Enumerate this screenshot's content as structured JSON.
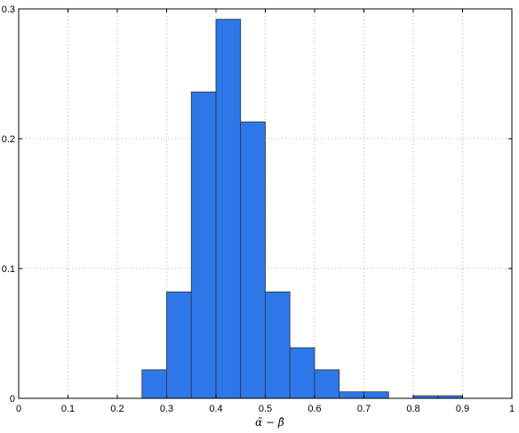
{
  "chart_data": {
    "type": "bar",
    "subtype": "histogram",
    "title": "",
    "xlabel": "α̃ − β̂",
    "ylabel": "",
    "xlim": [
      0,
      1
    ],
    "ylim": [
      0,
      0.3
    ],
    "grid": true,
    "grid_style": "dotted",
    "bar_color": "#2E77E8",
    "bar_edge_color": "#333333",
    "bins": [
      {
        "x0": 0.25,
        "x1": 0.3,
        "value": 0.022
      },
      {
        "x0": 0.3,
        "x1": 0.35,
        "value": 0.082
      },
      {
        "x0": 0.35,
        "x1": 0.4,
        "value": 0.236
      },
      {
        "x0": 0.4,
        "x1": 0.45,
        "value": 0.292
      },
      {
        "x0": 0.45,
        "x1": 0.5,
        "value": 0.213
      },
      {
        "x0": 0.5,
        "x1": 0.55,
        "value": 0.082
      },
      {
        "x0": 0.55,
        "x1": 0.6,
        "value": 0.039
      },
      {
        "x0": 0.6,
        "x1": 0.65,
        "value": 0.022
      },
      {
        "x0": 0.65,
        "x1": 0.7,
        "value": 0.005
      },
      {
        "x0": 0.7,
        "x1": 0.75,
        "value": 0.005
      },
      {
        "x0": 0.8,
        "x1": 0.85,
        "value": 0.002
      },
      {
        "x0": 0.85,
        "x1": 0.9,
        "value": 0.002
      }
    ],
    "x_ticks": [
      0,
      0.1,
      0.2,
      0.3,
      0.4,
      0.5,
      0.6,
      0.7,
      0.8,
      0.9,
      1
    ],
    "x_tick_labels": [
      "0",
      "0.1",
      "0.2",
      "0.3",
      "0.4",
      "0.5",
      "0.6",
      "0.7",
      "0.8",
      "0.9",
      "1"
    ],
    "y_ticks": [
      0,
      0.1,
      0.2,
      0.3
    ],
    "y_tick_labels": [
      "0",
      "0.1",
      "0.2",
      "0.3"
    ]
  }
}
